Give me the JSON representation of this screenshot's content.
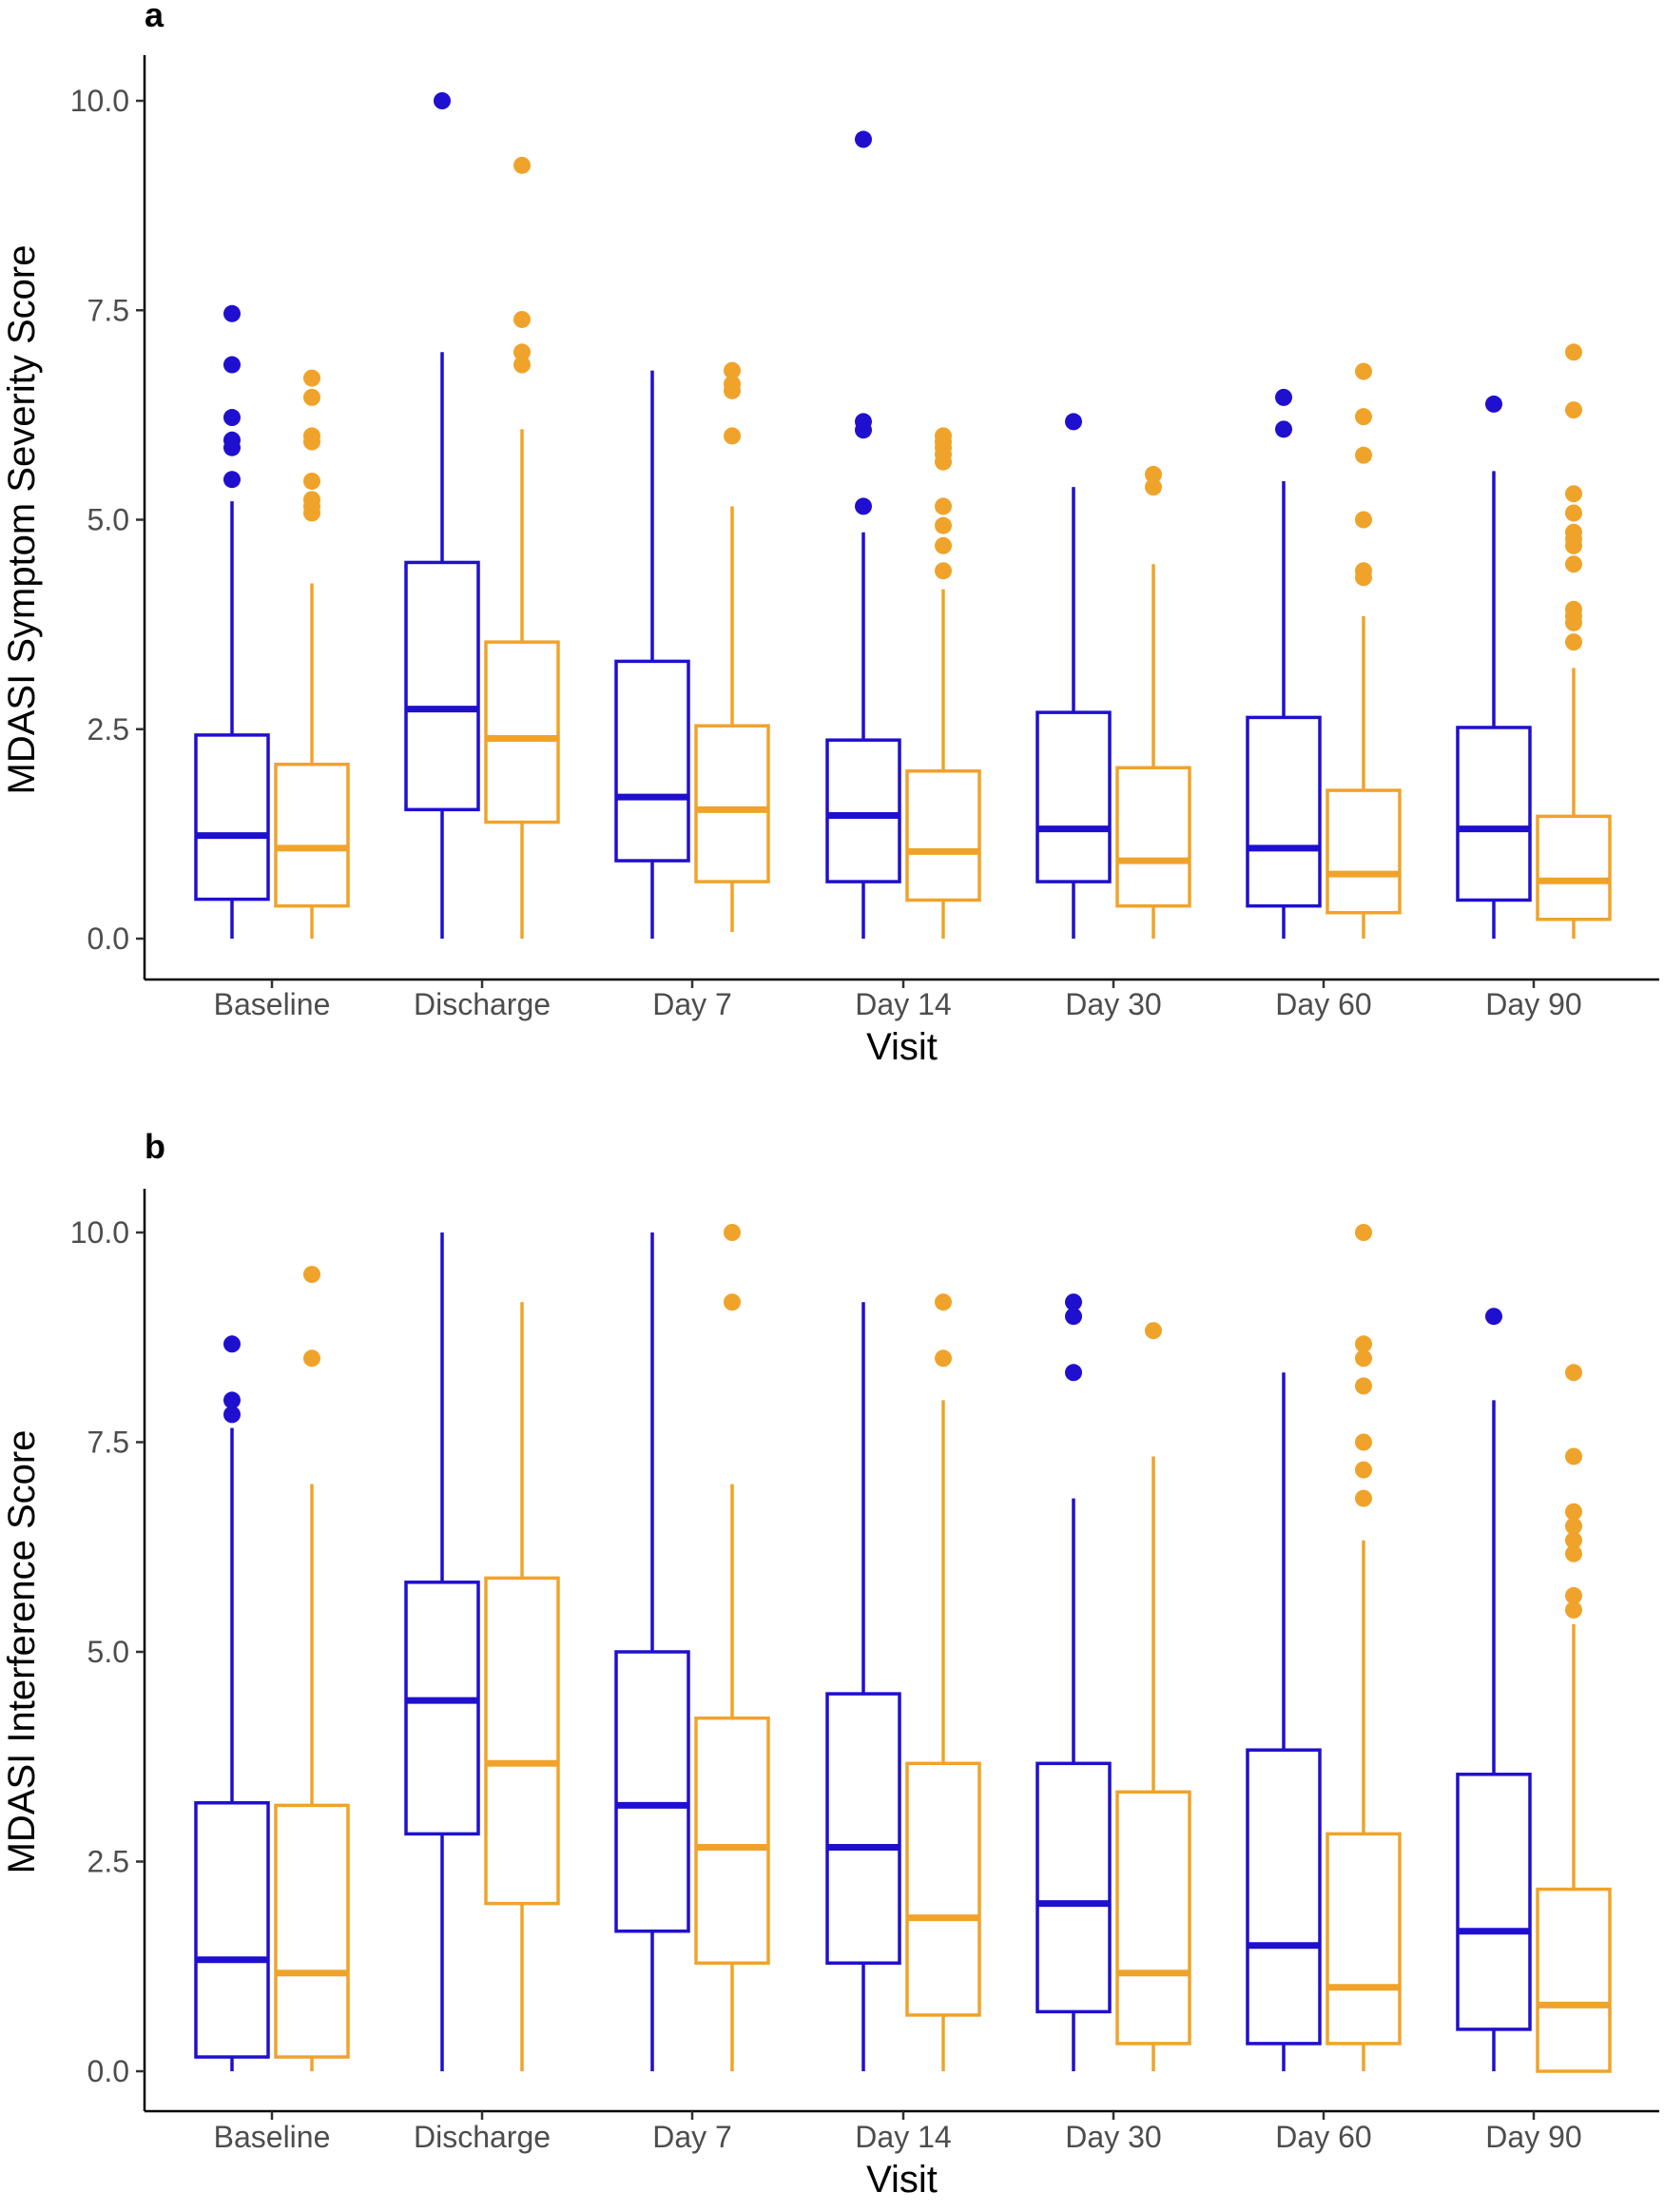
{
  "colors": {
    "group1": "#1f0fcf",
    "group2": "#f0a32a"
  },
  "chart_data": [
    {
      "type": "boxplot",
      "panel_label": "a",
      "xlabel": "Visit",
      "ylabel": "MDASI Symptom Severity Score",
      "ylim": [
        0,
        10.5
      ],
      "yticks": [
        "0.0",
        "2.5",
        "5.0",
        "7.5",
        "10.0"
      ],
      "categories": [
        "Baseline",
        "Discharge",
        "Day 7",
        "Day 14",
        "Day 30",
        "Day 60",
        "Day 90"
      ],
      "series": [
        {
          "name": "group1",
          "boxes": [
            {
              "low": 0,
              "q1": 0.47,
              "median": 1.23,
              "q3": 2.43,
              "high": 5.22,
              "outliers": [
                5.48,
                5.86,
                5.95,
                6.22,
                6.85,
                7.46
              ]
            },
            {
              "low": 0,
              "q1": 1.54,
              "median": 2.74,
              "q3": 4.49,
              "high": 7.0,
              "outliers": [
                10.0
              ]
            },
            {
              "low": 0,
              "q1": 0.93,
              "median": 1.69,
              "q3": 3.31,
              "high": 6.78,
              "outliers": []
            },
            {
              "low": 0,
              "q1": 0.68,
              "median": 1.47,
              "q3": 2.37,
              "high": 4.85,
              "outliers": [
                5.16,
                6.07,
                6.17,
                9.54
              ]
            },
            {
              "low": 0,
              "q1": 0.68,
              "median": 1.31,
              "q3": 2.7,
              "high": 5.39,
              "outliers": [
                6.17
              ]
            },
            {
              "low": 0,
              "q1": 0.39,
              "median": 1.08,
              "q3": 2.64,
              "high": 5.46,
              "outliers": [
                6.08,
                6.46
              ]
            },
            {
              "low": 0,
              "q1": 0.46,
              "median": 1.31,
              "q3": 2.52,
              "high": 5.58,
              "outliers": [
                6.38
              ]
            }
          ]
        },
        {
          "name": "group2",
          "boxes": [
            {
              "low": 0,
              "q1": 0.39,
              "median": 1.08,
              "q3": 2.08,
              "high": 4.24,
              "outliers": [
                5.08,
                5.16,
                5.24,
                5.46,
                5.93,
                6.0,
                6.46,
                6.69
              ]
            },
            {
              "low": 0,
              "q1": 1.39,
              "median": 2.39,
              "q3": 3.54,
              "high": 6.08,
              "outliers": [
                6.85,
                7.0,
                7.39,
                9.23
              ]
            },
            {
              "low": 0.08,
              "q1": 0.68,
              "median": 1.54,
              "q3": 2.54,
              "high": 5.16,
              "outliers": [
                6.0,
                6.54,
                6.62,
                6.78
              ]
            },
            {
              "low": 0,
              "q1": 0.46,
              "median": 1.04,
              "q3": 2.0,
              "high": 4.17,
              "outliers": [
                4.39,
                4.69,
                4.93,
                5.16,
                5.69,
                5.78,
                5.86,
                5.93,
                6.0
              ]
            },
            {
              "low": 0,
              "q1": 0.39,
              "median": 0.93,
              "q3": 2.04,
              "high": 4.47,
              "outliers": [
                5.39,
                5.54
              ]
            },
            {
              "low": 0,
              "q1": 0.31,
              "median": 0.77,
              "q3": 1.77,
              "high": 3.85,
              "outliers": [
                4.31,
                4.39,
                5.0,
                5.77,
                6.23,
                6.77
              ]
            },
            {
              "low": 0,
              "q1": 0.23,
              "median": 0.69,
              "q3": 1.46,
              "high": 3.23,
              "outliers": [
                3.54,
                3.77,
                3.85,
                3.93,
                4.47,
                4.69,
                4.77,
                4.85,
                5.08,
                5.31,
                6.31,
                7.0
              ]
            }
          ]
        }
      ]
    },
    {
      "type": "boxplot",
      "panel_label": "b",
      "xlabel": "Visit",
      "ylabel": "MDASI Interference Score",
      "ylim": [
        0,
        10.5
      ],
      "yticks": [
        "0.0",
        "2.5",
        "5.0",
        "7.5",
        "10.0"
      ],
      "categories": [
        "Baseline",
        "Discharge",
        "Day 7",
        "Day 14",
        "Day 30",
        "Day 60",
        "Day 90"
      ],
      "series": [
        {
          "name": "group1",
          "boxes": [
            {
              "low": 0,
              "q1": 0.17,
              "median": 1.33,
              "q3": 3.2,
              "high": 7.67,
              "outliers": [
                7.83,
                8.0,
                8.67
              ]
            },
            {
              "low": 0,
              "q1": 2.83,
              "median": 4.42,
              "q3": 5.83,
              "high": 10.0,
              "outliers": []
            },
            {
              "low": 0,
              "q1": 1.67,
              "median": 3.17,
              "q3": 5.0,
              "high": 10.0,
              "outliers": []
            },
            {
              "low": 0,
              "q1": 1.29,
              "median": 2.67,
              "q3": 4.5,
              "high": 9.17,
              "outliers": []
            },
            {
              "low": 0,
              "q1": 0.71,
              "median": 2.0,
              "q3": 3.67,
              "high": 6.83,
              "outliers": [
                8.33,
                9.0,
                9.17
              ]
            },
            {
              "low": 0,
              "q1": 0.33,
              "median": 1.5,
              "q3": 3.83,
              "high": 8.33,
              "outliers": []
            },
            {
              "low": 0,
              "q1": 0.5,
              "median": 1.67,
              "q3": 3.54,
              "high": 8.0,
              "outliers": [
                9.0
              ]
            }
          ]
        },
        {
          "name": "group2",
          "boxes": [
            {
              "low": 0,
              "q1": 0.17,
              "median": 1.17,
              "q3": 3.17,
              "high": 7.0,
              "outliers": [
                8.5,
                9.5
              ]
            },
            {
              "low": 0,
              "q1": 2.0,
              "median": 3.67,
              "q3": 5.88,
              "high": 9.17,
              "outliers": []
            },
            {
              "low": 0,
              "q1": 1.29,
              "median": 2.67,
              "q3": 4.21,
              "high": 7.0,
              "outliers": [
                9.17,
                10.0
              ]
            },
            {
              "low": 0,
              "q1": 0.67,
              "median": 1.83,
              "q3": 3.67,
              "high": 8.0,
              "outliers": [
                8.5,
                9.17
              ]
            },
            {
              "low": 0,
              "q1": 0.33,
              "median": 1.17,
              "q3": 3.33,
              "high": 7.33,
              "outliers": [
                8.83
              ]
            },
            {
              "low": 0,
              "q1": 0.33,
              "median": 1.0,
              "q3": 2.83,
              "high": 6.33,
              "outliers": [
                6.83,
                7.17,
                7.5,
                8.17,
                8.5,
                8.67,
                10.0
              ]
            },
            {
              "low": 0,
              "q1": 0.0,
              "median": 0.79,
              "q3": 2.17,
              "high": 5.33,
              "outliers": [
                5.5,
                5.67,
                6.17,
                6.33,
                6.5,
                6.67,
                7.33,
                8.33
              ]
            }
          ]
        }
      ]
    }
  ]
}
